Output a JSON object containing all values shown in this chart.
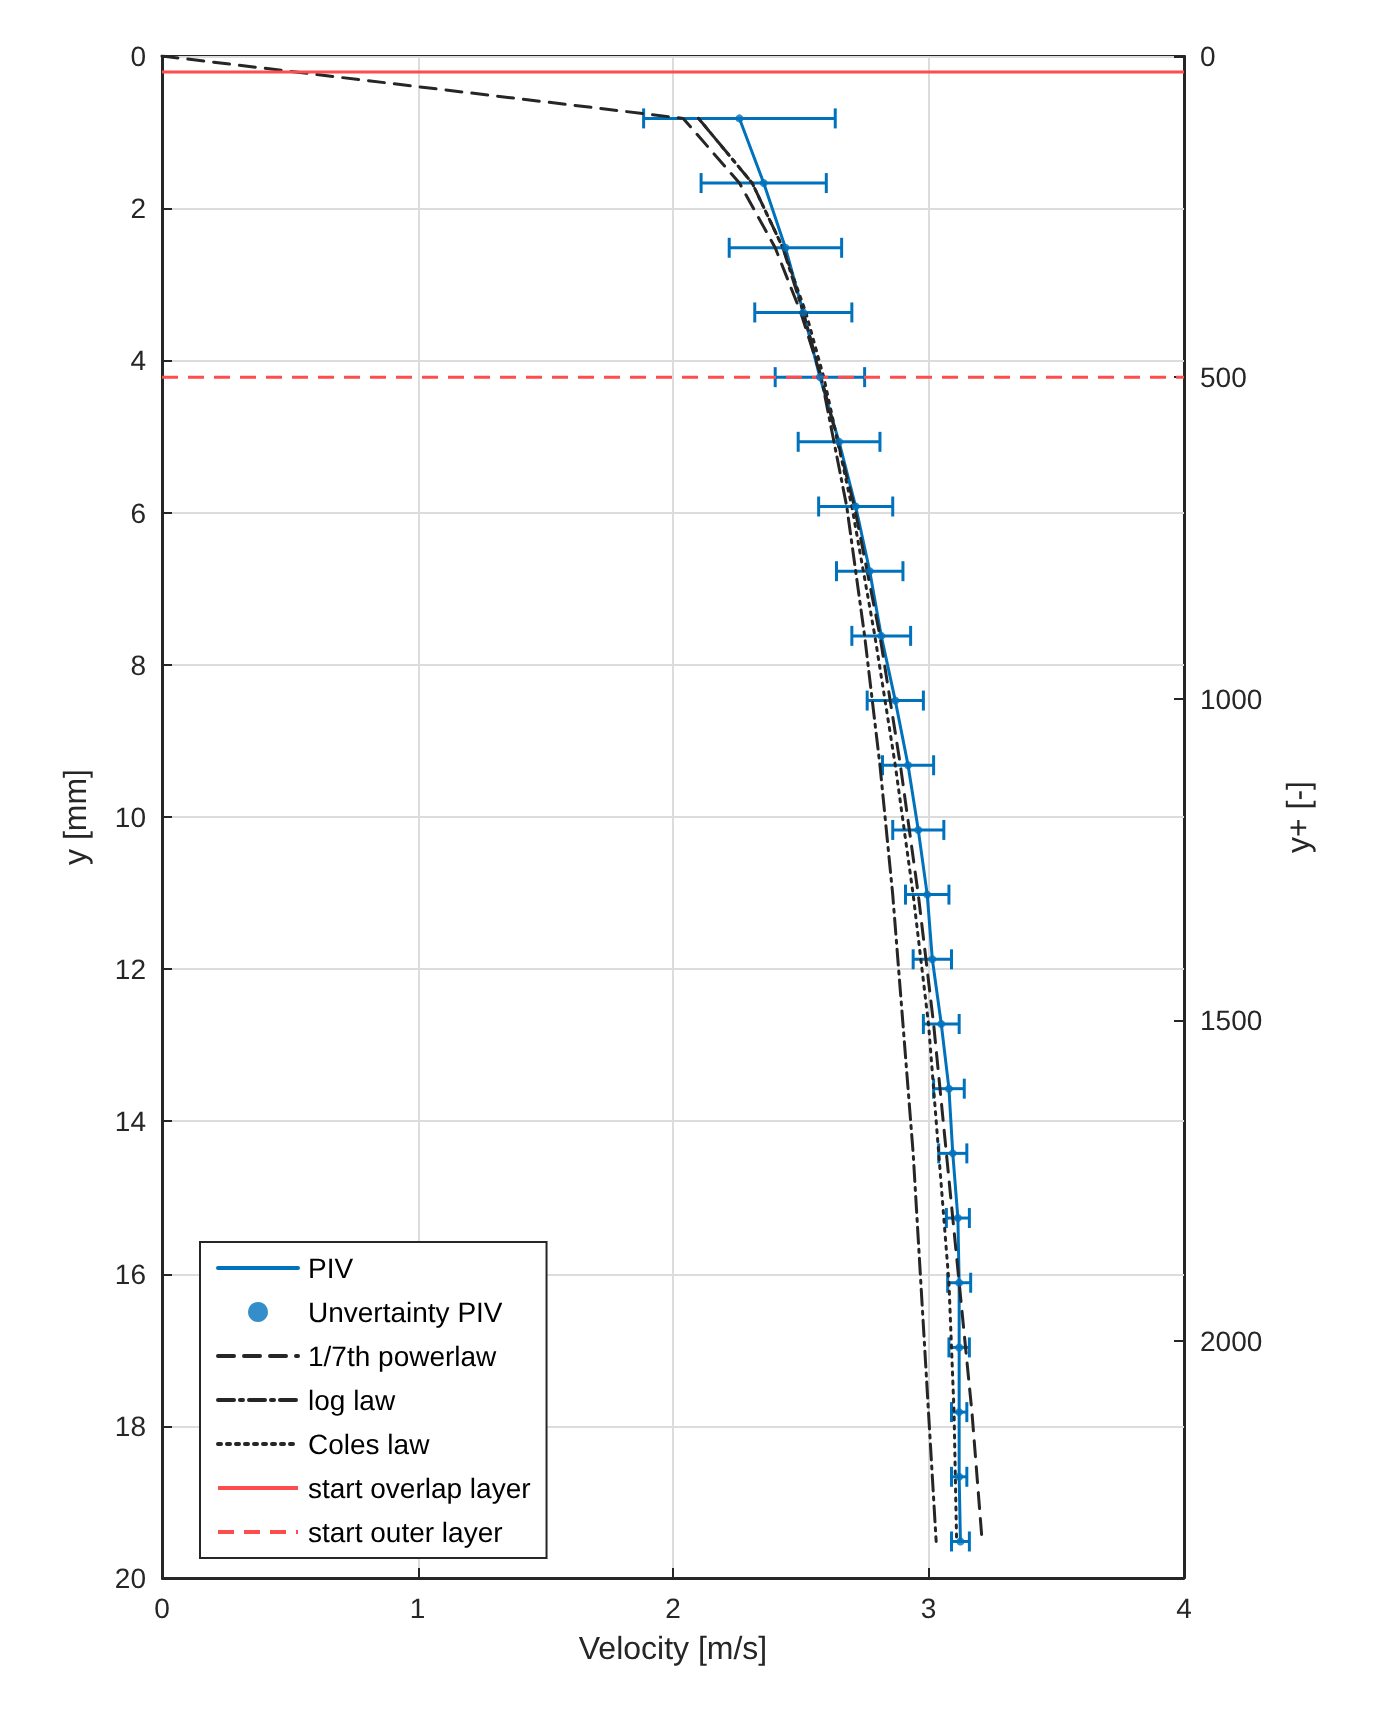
{
  "chart_data": {
    "type": "line",
    "xlabel": "Velocity [m/s]",
    "ylabel": "y [mm]",
    "y2label": "y+ [-]",
    "xlim": [
      0,
      4
    ],
    "xticks": [
      0,
      1,
      2,
      3,
      4
    ],
    "ylim": [
      20,
      0
    ],
    "yticks": [
      0,
      2,
      4,
      6,
      8,
      10,
      12,
      14,
      16,
      18,
      20
    ],
    "y2lim": [
      2368,
      0
    ],
    "y2ticks": [
      0,
      500,
      1000,
      1500,
      2000
    ],
    "grid": true,
    "legend": "bottom left",
    "marker": "none",
    "series": [
      {
        "name": "PIV",
        "color": "#0072bd",
        "line_style": "solid",
        "x": [
          2.26,
          2.355,
          2.44,
          2.51,
          2.575,
          2.65,
          2.715,
          2.77,
          2.815,
          2.87,
          2.92,
          2.96,
          2.995,
          3.015,
          3.05,
          3.08,
          3.095,
          3.115,
          3.12,
          3.12,
          3.12,
          3.12,
          3.125
        ],
        "values": [
          0.82,
          1.67,
          2.52,
          3.37,
          4.22,
          5.07,
          5.92,
          6.77,
          7.62,
          8.47,
          9.32,
          10.17,
          11.02,
          11.87,
          12.72,
          13.57,
          14.42,
          15.27,
          16.12,
          16.97,
          17.82,
          18.67,
          19.52
        ]
      },
      {
        "name": "Unvertainty PIV",
        "type": "scatter",
        "marker": "circle",
        "color": "#0072bd",
        "x": [
          2.26,
          2.355,
          2.44,
          2.51,
          2.575,
          2.65,
          2.715,
          2.77,
          2.815,
          2.87,
          2.92,
          2.96,
          2.995,
          3.015,
          3.05,
          3.08,
          3.095,
          3.115,
          3.12,
          3.12,
          3.12,
          3.12,
          3.125
        ],
        "values": [
          0.82,
          1.67,
          2.52,
          3.37,
          4.22,
          5.07,
          5.92,
          6.77,
          7.62,
          8.47,
          9.32,
          10.17,
          11.02,
          11.87,
          12.72,
          13.57,
          14.42,
          15.27,
          16.12,
          16.97,
          17.82,
          18.67,
          19.52
        ],
        "xerrors": [
          0.375,
          0.245,
          0.22,
          0.19,
          0.175,
          0.16,
          0.145,
          0.13,
          0.115,
          0.11,
          0.1,
          0.1,
          0.085,
          0.075,
          0.07,
          0.06,
          0.055,
          0.045,
          0.045,
          0.04,
          0.03,
          0.03,
          0.035
        ]
      },
      {
        "name": "1/7th powerlaw",
        "color": "#262626",
        "line_style": "dashed",
        "x": [
          0,
          2.04,
          2.26,
          2.4,
          2.5,
          2.58,
          2.71,
          2.81,
          2.89,
          2.96,
          3.02,
          3.07,
          3.12,
          3.17,
          3.21
        ],
        "values": [
          0,
          0.82,
          1.67,
          2.52,
          3.37,
          4.22,
          5.92,
          7.62,
          9.32,
          11.02,
          12.72,
          14.42,
          16.12,
          17.82,
          19.52
        ]
      },
      {
        "name": "log law",
        "color": "#262626",
        "line_style": "dashdot",
        "x": [
          2.1,
          2.31,
          2.43,
          2.51,
          2.58,
          2.68,
          2.75,
          2.81,
          2.86,
          2.9,
          2.94,
          2.97,
          3.0,
          3.03
        ],
        "values": [
          0.82,
          1.67,
          2.52,
          3.37,
          4.22,
          5.92,
          7.62,
          9.32,
          11.02,
          12.72,
          14.42,
          16.12,
          17.82,
          19.52
        ]
      },
      {
        "name": "Coles law",
        "color": "#262626",
        "line_style": "dotted",
        "x": [
          2.1,
          2.31,
          2.43,
          2.52,
          2.59,
          2.7,
          2.79,
          2.87,
          2.94,
          3.0,
          3.04,
          3.08,
          3.1,
          3.11
        ],
        "values": [
          0.82,
          1.67,
          2.52,
          3.37,
          4.22,
          5.92,
          7.62,
          9.32,
          11.02,
          12.72,
          14.42,
          16.12,
          17.82,
          19.52
        ]
      }
    ],
    "ref_lines": [
      {
        "axis": "y",
        "value": 0.21,
        "label": "start overlap layer",
        "color": "#ff4d4d",
        "line_style": "solid"
      },
      {
        "axis": "y",
        "value": 4.22,
        "label": "start outer layer",
        "color": "#ff4d4d",
        "line_style": "dashed"
      }
    ]
  }
}
